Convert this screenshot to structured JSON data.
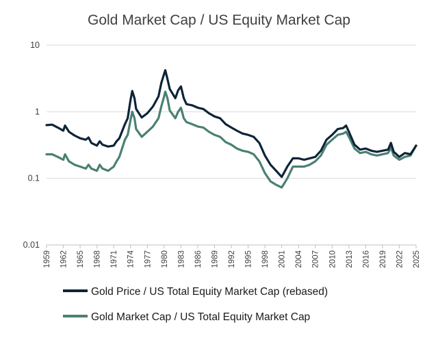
{
  "chart_data": {
    "type": "line",
    "title": "Gold Market Cap / US Equity Market Cap",
    "xlabel": "",
    "ylabel": "",
    "y_scale": "log",
    "ylim": [
      0.01,
      10
    ],
    "y_ticks": [
      "0.01",
      "0.1",
      "1",
      "10"
    ],
    "xlim": [
      1959,
      2025
    ],
    "x_tick_labels": [
      "1959",
      "1962",
      "1965",
      "1968",
      "1971",
      "1974",
      "1977",
      "1980",
      "1983",
      "1986",
      "1989",
      "1992",
      "1995",
      "1998",
      "2001",
      "2004",
      "2007",
      "2010",
      "2013",
      "2016",
      "2019",
      "2022",
      "2025"
    ],
    "grid": "horizontal",
    "legend_position": "bottom",
    "series": [
      {
        "name": "Gold Price / US Total Equity Market Cap (rebased)",
        "color": "#0d2438",
        "points": [
          [
            1959,
            0.63
          ],
          [
            1960,
            0.64
          ],
          [
            1961,
            0.58
          ],
          [
            1962,
            0.52
          ],
          [
            1962.3,
            0.62
          ],
          [
            1962.7,
            0.55
          ],
          [
            1963,
            0.5
          ],
          [
            1964,
            0.44
          ],
          [
            1965,
            0.4
          ],
          [
            1966,
            0.38
          ],
          [
            1966.5,
            0.41
          ],
          [
            1967,
            0.34
          ],
          [
            1968,
            0.31
          ],
          [
            1968.5,
            0.36
          ],
          [
            1969,
            0.32
          ],
          [
            1970,
            0.3
          ],
          [
            1971,
            0.31
          ],
          [
            1971.5,
            0.36
          ],
          [
            1972,
            0.4
          ],
          [
            1973,
            0.65
          ],
          [
            1973.5,
            0.8
          ],
          [
            1974,
            1.5
          ],
          [
            1974.3,
            2.05
          ],
          [
            1974.7,
            1.6
          ],
          [
            1975,
            1.1
          ],
          [
            1976,
            0.82
          ],
          [
            1977,
            0.95
          ],
          [
            1978,
            1.2
          ],
          [
            1979,
            1.7
          ],
          [
            1979.5,
            2.7
          ],
          [
            1980,
            3.7
          ],
          [
            1980.2,
            4.2
          ],
          [
            1980.6,
            3.1
          ],
          [
            1981,
            2.2
          ],
          [
            1982,
            1.6
          ],
          [
            1982.5,
            2.1
          ],
          [
            1983,
            2.4
          ],
          [
            1983.5,
            1.6
          ],
          [
            1984,
            1.3
          ],
          [
            1985,
            1.25
          ],
          [
            1986,
            1.15
          ],
          [
            1987,
            1.1
          ],
          [
            1988,
            0.95
          ],
          [
            1989,
            0.85
          ],
          [
            1990,
            0.8
          ],
          [
            1991,
            0.65
          ],
          [
            1992,
            0.58
          ],
          [
            1993,
            0.52
          ],
          [
            1994,
            0.47
          ],
          [
            1995,
            0.45
          ],
          [
            1996,
            0.42
          ],
          [
            1997,
            0.34
          ],
          [
            1998,
            0.22
          ],
          [
            1999,
            0.16
          ],
          [
            2000,
            0.13
          ],
          [
            2001,
            0.105
          ],
          [
            2001.5,
            0.125
          ],
          [
            2002,
            0.15
          ],
          [
            2003,
            0.2
          ],
          [
            2004,
            0.2
          ],
          [
            2005,
            0.19
          ],
          [
            2006,
            0.2
          ],
          [
            2007,
            0.21
          ],
          [
            2008,
            0.26
          ],
          [
            2009,
            0.38
          ],
          [
            2010,
            0.45
          ],
          [
            2011,
            0.55
          ],
          [
            2012,
            0.57
          ],
          [
            2012.5,
            0.62
          ],
          [
            2013,
            0.5
          ],
          [
            2014,
            0.32
          ],
          [
            2015,
            0.27
          ],
          [
            2016,
            0.28
          ],
          [
            2017,
            0.26
          ],
          [
            2018,
            0.25
          ],
          [
            2019,
            0.26
          ],
          [
            2020,
            0.27
          ],
          [
            2020.5,
            0.34
          ],
          [
            2021,
            0.25
          ],
          [
            2022,
            0.21
          ],
          [
            2023,
            0.24
          ],
          [
            2024,
            0.23
          ],
          [
            2025,
            0.31
          ]
        ]
      },
      {
        "name": "Gold Market Cap / US Total Equity Market Cap",
        "color": "#4a8072",
        "points": [
          [
            1959,
            0.23
          ],
          [
            1960,
            0.23
          ],
          [
            1961,
            0.21
          ],
          [
            1962,
            0.19
          ],
          [
            1962.3,
            0.23
          ],
          [
            1962.7,
            0.2
          ],
          [
            1963,
            0.18
          ],
          [
            1964,
            0.16
          ],
          [
            1965,
            0.15
          ],
          [
            1966,
            0.14
          ],
          [
            1966.5,
            0.16
          ],
          [
            1967,
            0.14
          ],
          [
            1968,
            0.13
          ],
          [
            1968.5,
            0.16
          ],
          [
            1969,
            0.14
          ],
          [
            1970,
            0.13
          ],
          [
            1971,
            0.15
          ],
          [
            1971.5,
            0.18
          ],
          [
            1972,
            0.21
          ],
          [
            1973,
            0.38
          ],
          [
            1973.5,
            0.45
          ],
          [
            1974,
            0.75
          ],
          [
            1974.3,
            1.0
          ],
          [
            1974.7,
            0.8
          ],
          [
            1975,
            0.55
          ],
          [
            1976,
            0.42
          ],
          [
            1977,
            0.5
          ],
          [
            1978,
            0.6
          ],
          [
            1979,
            0.8
          ],
          [
            1979.5,
            1.2
          ],
          [
            1980,
            1.7
          ],
          [
            1980.2,
            2.0
          ],
          [
            1980.6,
            1.6
          ],
          [
            1981,
            1.05
          ],
          [
            1982,
            0.8
          ],
          [
            1982.5,
            1.0
          ],
          [
            1983,
            1.15
          ],
          [
            1983.5,
            0.8
          ],
          [
            1984,
            0.7
          ],
          [
            1985,
            0.65
          ],
          [
            1986,
            0.6
          ],
          [
            1987,
            0.58
          ],
          [
            1988,
            0.5
          ],
          [
            1989,
            0.45
          ],
          [
            1990,
            0.42
          ],
          [
            1991,
            0.35
          ],
          [
            1992,
            0.32
          ],
          [
            1993,
            0.28
          ],
          [
            1994,
            0.26
          ],
          [
            1995,
            0.25
          ],
          [
            1996,
            0.23
          ],
          [
            1997,
            0.18
          ],
          [
            1998,
            0.12
          ],
          [
            1999,
            0.09
          ],
          [
            2000,
            0.08
          ],
          [
            2001,
            0.073
          ],
          [
            2001.5,
            0.085
          ],
          [
            2002,
            0.1
          ],
          [
            2003,
            0.15
          ],
          [
            2004,
            0.15
          ],
          [
            2005,
            0.15
          ],
          [
            2006,
            0.16
          ],
          [
            2007,
            0.18
          ],
          [
            2008,
            0.22
          ],
          [
            2009,
            0.32
          ],
          [
            2010,
            0.38
          ],
          [
            2011,
            0.45
          ],
          [
            2012,
            0.47
          ],
          [
            2012.5,
            0.5
          ],
          [
            2013,
            0.42
          ],
          [
            2014,
            0.28
          ],
          [
            2015,
            0.24
          ],
          [
            2016,
            0.25
          ],
          [
            2017,
            0.23
          ],
          [
            2018,
            0.22
          ],
          [
            2019,
            0.23
          ],
          [
            2020,
            0.24
          ],
          [
            2020.5,
            0.29
          ],
          [
            2021,
            0.22
          ],
          [
            2022,
            0.19
          ],
          [
            2023,
            0.21
          ],
          [
            2024,
            0.22
          ],
          [
            2025,
            0.31
          ]
        ]
      }
    ]
  }
}
